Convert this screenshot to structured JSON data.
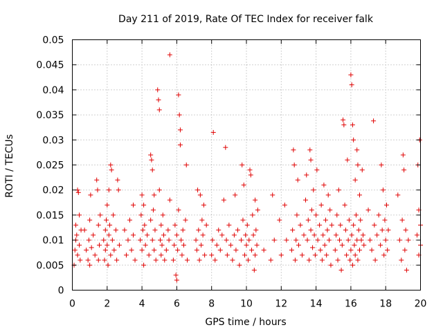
{
  "chart_data": {
    "type": "scatter",
    "title": "Day 211 of 2019, Rate Of TEC Index for receiver falk",
    "xlabel": "GPS time / hours",
    "ylabel": "ROTI / TECUs",
    "xlim": [
      0,
      20
    ],
    "ylim": [
      0,
      0.05
    ],
    "xticks": [
      0,
      2,
      4,
      6,
      8,
      10,
      12,
      14,
      16,
      18,
      20
    ],
    "yticks": [
      0,
      0.005,
      0.01,
      0.015,
      0.02,
      0.025,
      0.03,
      0.035,
      0.04,
      0.045,
      0.05
    ],
    "xtick_labels": [
      "0",
      "2",
      "4",
      "6",
      "8",
      "10",
      "12",
      "14",
      "16",
      "18",
      "20"
    ],
    "ytick_labels": [
      "0",
      "0.005",
      "0.01",
      "0.015",
      "0.02",
      "0.025",
      "0.03",
      "0.035",
      "0.04",
      "0.045",
      "0.05"
    ],
    "grid": true,
    "marker": "+",
    "color": "#e00000",
    "series": [
      {
        "points": [
          [
            0.1,
            0.005
          ],
          [
            0.15,
            0.008
          ],
          [
            0.2,
            0.01
          ],
          [
            0.2,
            0.013
          ],
          [
            0.25,
            0.011
          ],
          [
            0.3,
            0.007
          ],
          [
            0.3,
            0.02
          ],
          [
            0.35,
            0.0195
          ],
          [
            0.4,
            0.015
          ],
          [
            0.4,
            0.009
          ],
          [
            0.45,
            0.006
          ],
          [
            0.5,
            0.012
          ],
          [
            0.7,
            0.012
          ],
          [
            0.8,
            0.008
          ],
          [
            0.9,
            0.006
          ],
          [
            0.95,
            0.01
          ],
          [
            1.0,
            0.014
          ],
          [
            1.0,
            0.005
          ],
          [
            1.05,
            0.019
          ],
          [
            1.1,
            0.0085
          ],
          [
            1.2,
            0.011
          ],
          [
            1.3,
            0.007
          ],
          [
            1.4,
            0.022
          ],
          [
            1.45,
            0.02
          ],
          [
            1.5,
            0.013
          ],
          [
            1.5,
            0.006
          ],
          [
            1.55,
            0.009
          ],
          [
            1.6,
            0.015
          ],
          [
            1.8,
            0.01
          ],
          [
            1.85,
            0.006
          ],
          [
            1.9,
            0.008
          ],
          [
            1.9,
            0.012
          ],
          [
            1.95,
            0.014
          ],
          [
            2.0,
            0.017
          ],
          [
            2.0,
            0.009
          ],
          [
            2.05,
            0.005
          ],
          [
            2.1,
            0.011
          ],
          [
            2.1,
            0.02
          ],
          [
            2.15,
            0.013
          ],
          [
            2.2,
            0.007
          ],
          [
            2.2,
            0.025
          ],
          [
            2.25,
            0.024
          ],
          [
            2.3,
            0.01
          ],
          [
            2.35,
            0.015
          ],
          [
            2.4,
            0.008
          ],
          [
            2.5,
            0.012
          ],
          [
            2.55,
            0.006
          ],
          [
            2.6,
            0.022
          ],
          [
            2.65,
            0.02
          ],
          [
            2.7,
            0.009
          ],
          [
            3.0,
            0.012
          ],
          [
            3.1,
            0.007
          ],
          [
            3.2,
            0.01
          ],
          [
            3.3,
            0.014
          ],
          [
            3.4,
            0.008
          ],
          [
            3.5,
            0.011
          ],
          [
            3.5,
            0.017
          ],
          [
            3.6,
            0.006
          ],
          [
            3.9,
            0.01
          ],
          [
            3.95,
            0.015
          ],
          [
            4.0,
            0.019
          ],
          [
            4.0,
            0.008
          ],
          [
            4.05,
            0.012
          ],
          [
            4.1,
            0.005
          ],
          [
            4.1,
            0.017
          ],
          [
            4.15,
            0.013
          ],
          [
            4.2,
            0.009
          ],
          [
            4.3,
            0.011
          ],
          [
            4.4,
            0.007
          ],
          [
            4.5,
            0.014
          ],
          [
            4.5,
            0.027
          ],
          [
            4.55,
            0.026
          ],
          [
            4.6,
            0.024
          ],
          [
            4.6,
            0.01
          ],
          [
            4.65,
            0.016
          ],
          [
            4.7,
            0.008
          ],
          [
            4.7,
            0.019
          ],
          [
            4.75,
            0.012
          ],
          [
            4.8,
            0.006
          ],
          [
            4.9,
            0.04
          ],
          [
            4.95,
            0.038
          ],
          [
            5.0,
            0.036
          ],
          [
            5.0,
            0.02
          ],
          [
            5.05,
            0.01
          ],
          [
            5.1,
            0.013
          ],
          [
            5.1,
            0.007
          ],
          [
            5.15,
            0.009
          ],
          [
            5.2,
            0.015
          ],
          [
            5.25,
            0.011
          ],
          [
            5.3,
            0.006
          ],
          [
            5.4,
            0.008
          ],
          [
            5.5,
            0.012
          ],
          [
            5.55,
            0.01
          ],
          [
            5.6,
            0.047
          ],
          [
            5.6,
            0.018
          ],
          [
            5.8,
            0.006
          ],
          [
            5.85,
            0.009
          ],
          [
            5.9,
            0.013
          ],
          [
            5.95,
            0.003
          ],
          [
            6.0,
            0.002
          ],
          [
            6.0,
            0.011
          ],
          [
            6.05,
            0.008
          ],
          [
            6.1,
            0.039
          ],
          [
            6.1,
            0.016
          ],
          [
            6.15,
            0.035
          ],
          [
            6.2,
            0.032
          ],
          [
            6.2,
            0.029
          ],
          [
            6.25,
            0.01
          ],
          [
            6.3,
            0.007
          ],
          [
            6.35,
            0.012
          ],
          [
            6.4,
            0.009
          ],
          [
            6.5,
            0.014
          ],
          [
            6.55,
            0.025
          ],
          [
            6.6,
            0.006
          ],
          [
            7.1,
            0.01
          ],
          [
            7.15,
            0.008
          ],
          [
            7.2,
            0.02
          ],
          [
            7.25,
            0.012
          ],
          [
            7.3,
            0.006
          ],
          [
            7.35,
            0.019
          ],
          [
            7.4,
            0.009
          ],
          [
            7.45,
            0.014
          ],
          [
            7.5,
            0.011
          ],
          [
            7.55,
            0.017
          ],
          [
            7.6,
            0.007
          ],
          [
            7.7,
            0.013
          ],
          [
            8.0,
            0.007
          ],
          [
            8.05,
            0.01
          ],
          [
            8.1,
            0.0315
          ],
          [
            8.2,
            0.006
          ],
          [
            8.3,
            0.009
          ],
          [
            8.4,
            0.012
          ],
          [
            8.5,
            0.008
          ],
          [
            8.6,
            0.011
          ],
          [
            8.7,
            0.018
          ],
          [
            8.8,
            0.0285
          ],
          [
            8.85,
            0.01
          ],
          [
            8.9,
            0.007
          ],
          [
            9.0,
            0.013
          ],
          [
            9.1,
            0.009
          ],
          [
            9.2,
            0.006
          ],
          [
            9.3,
            0.011
          ],
          [
            9.35,
            0.019
          ],
          [
            9.4,
            0.008
          ],
          [
            9.5,
            0.012
          ],
          [
            9.6,
            0.005
          ],
          [
            9.7,
            0.01
          ],
          [
            9.75,
            0.025
          ],
          [
            9.8,
            0.014
          ],
          [
            9.85,
            0.021
          ],
          [
            9.9,
            0.007
          ],
          [
            9.95,
            0.011
          ],
          [
            10.0,
            0.009
          ],
          [
            10.05,
            0.013
          ],
          [
            10.1,
            0.006
          ],
          [
            10.15,
            0.01
          ],
          [
            10.2,
            0.024
          ],
          [
            10.25,
            0.023
          ],
          [
            10.3,
            0.008
          ],
          [
            10.35,
            0.015
          ],
          [
            10.4,
            0.011
          ],
          [
            10.45,
            0.004
          ],
          [
            10.5,
            0.018
          ],
          [
            10.5,
            0.007
          ],
          [
            10.55,
            0.012
          ],
          [
            10.6,
            0.009
          ],
          [
            10.65,
            0.016
          ],
          [
            11.0,
            0.008
          ],
          [
            11.4,
            0.006
          ],
          [
            11.5,
            0.019
          ],
          [
            11.6,
            0.01
          ],
          [
            11.9,
            0.014
          ],
          [
            12.0,
            0.007
          ],
          [
            12.2,
            0.017
          ],
          [
            12.3,
            0.01
          ],
          [
            12.6,
            0.008
          ],
          [
            12.65,
            0.012
          ],
          [
            12.7,
            0.028
          ],
          [
            12.75,
            0.025
          ],
          [
            12.8,
            0.006
          ],
          [
            12.85,
            0.01
          ],
          [
            12.9,
            0.015
          ],
          [
            12.95,
            0.022
          ],
          [
            13.0,
            0.009
          ],
          [
            13.1,
            0.013
          ],
          [
            13.2,
            0.007
          ],
          [
            13.3,
            0.011
          ],
          [
            13.4,
            0.018
          ],
          [
            13.45,
            0.023
          ],
          [
            13.5,
            0.01
          ],
          [
            13.55,
            0.014
          ],
          [
            13.6,
            0.006
          ],
          [
            13.65,
            0.028
          ],
          [
            13.7,
            0.026
          ],
          [
            13.7,
            0.012
          ],
          [
            13.75,
            0.016
          ],
          [
            13.8,
            0.0085
          ],
          [
            13.85,
            0.02
          ],
          [
            13.9,
            0.011
          ],
          [
            13.95,
            0.007
          ],
          [
            14.0,
            0.015
          ],
          [
            14.05,
            0.024
          ],
          [
            14.1,
            0.01
          ],
          [
            14.2,
            0.013
          ],
          [
            14.25,
            0.008
          ],
          [
            14.3,
            0.017
          ],
          [
            14.35,
            0.006
          ],
          [
            14.4,
            0.011
          ],
          [
            14.45,
            0.021
          ],
          [
            14.5,
            0.009
          ],
          [
            14.55,
            0.014
          ],
          [
            14.6,
            0.007
          ],
          [
            14.65,
            0.012
          ],
          [
            14.7,
            0.019
          ],
          [
            14.75,
            0.01
          ],
          [
            14.8,
            0.016
          ],
          [
            14.85,
            0.005
          ],
          [
            14.9,
            0.013
          ],
          [
            15.1,
            0.008
          ],
          [
            15.15,
            0.011
          ],
          [
            15.2,
            0.015
          ],
          [
            15.25,
            0.006
          ],
          [
            15.3,
            0.02
          ],
          [
            15.35,
            0.01
          ],
          [
            15.4,
            0.013
          ],
          [
            15.45,
            0.004
          ],
          [
            15.5,
            0.009
          ],
          [
            15.55,
            0.034
          ],
          [
            15.6,
            0.033
          ],
          [
            15.65,
            0.017
          ],
          [
            15.7,
            0.012
          ],
          [
            15.75,
            0.007
          ],
          [
            15.8,
            0.026
          ],
          [
            15.85,
            0.01
          ],
          [
            15.9,
            0.014
          ],
          [
            15.95,
            0.006
          ],
          [
            16.0,
            0.043
          ],
          [
            16.0,
            0.008
          ],
          [
            16.05,
            0.041
          ],
          [
            16.05,
            0.011
          ],
          [
            16.1,
            0.033
          ],
          [
            16.1,
            0.005
          ],
          [
            16.15,
            0.03
          ],
          [
            16.15,
            0.013
          ],
          [
            16.2,
            0.009
          ],
          [
            16.25,
            0.022
          ],
          [
            16.25,
            0.007
          ],
          [
            16.3,
            0.015
          ],
          [
            16.35,
            0.028
          ],
          [
            16.35,
            0.01
          ],
          [
            16.4,
            0.025
          ],
          [
            16.4,
            0.006
          ],
          [
            16.45,
            0.012
          ],
          [
            16.5,
            0.019
          ],
          [
            16.5,
            0.008
          ],
          [
            16.55,
            0.014
          ],
          [
            16.6,
            0.01
          ],
          [
            16.65,
            0.024
          ],
          [
            16.7,
            0.011
          ],
          [
            16.75,
            0.009
          ],
          [
            17.0,
            0.016
          ],
          [
            17.1,
            0.01
          ],
          [
            17.2,
            0.008
          ],
          [
            17.3,
            0.0338
          ],
          [
            17.35,
            0.013
          ],
          [
            17.4,
            0.006
          ],
          [
            17.5,
            0.011
          ],
          [
            17.6,
            0.015
          ],
          [
            17.7,
            0.009
          ],
          [
            17.75,
            0.025
          ],
          [
            17.8,
            0.012
          ],
          [
            17.85,
            0.02
          ],
          [
            17.9,
            0.007
          ],
          [
            17.95,
            0.014
          ],
          [
            18.0,
            0.01
          ],
          [
            18.05,
            0.017
          ],
          [
            18.1,
            0.008
          ],
          [
            18.15,
            0.012
          ],
          [
            18.7,
            0.019
          ],
          [
            18.8,
            0.01
          ],
          [
            18.9,
            0.006
          ],
          [
            18.95,
            0.014
          ],
          [
            19.0,
            0.027
          ],
          [
            19.05,
            0.024
          ],
          [
            19.1,
            0.008
          ],
          [
            19.15,
            0.012
          ],
          [
            19.2,
            0.004
          ],
          [
            19.3,
            0.01
          ],
          [
            19.8,
            0.011
          ],
          [
            19.85,
            0.025
          ],
          [
            19.9,
            0.016
          ],
          [
            19.9,
            0.007
          ],
          [
            19.95,
            0.03
          ],
          [
            20.0,
            0.009
          ],
          [
            20.0,
            0.013
          ]
        ]
      }
    ]
  }
}
